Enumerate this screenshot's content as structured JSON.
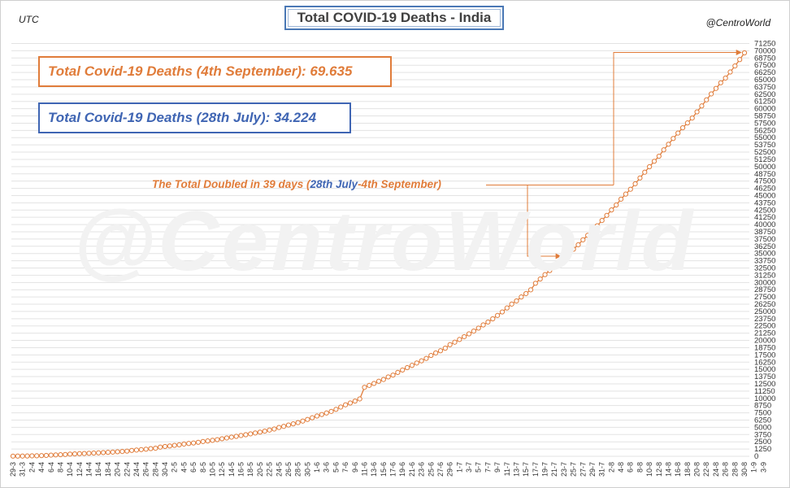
{
  "header": {
    "title": "Total COVID-19 Deaths - India",
    "left_note": "UTC",
    "right_note": "@CentroWorld"
  },
  "watermark": "@CentroWorld",
  "callouts": {
    "sept": "Total Covid-19 Deaths (4th September):  69.635",
    "july": "Total Covid-19 Deaths (28th July): 34.224",
    "doubled_part1": "The Total Doubled in 39 days (",
    "doubled_blue": "28th July",
    "doubled_part2": "-4th September)"
  },
  "colors": {
    "series": "#e07c3a",
    "july_accent": "#3f65b3",
    "title_border": "#4a78b5",
    "grid": "#e3e3e3"
  },
  "chart_data": {
    "type": "line",
    "title": "Total COVID-19 Deaths - India",
    "xlabel": "",
    "ylabel": "",
    "ylim": [
      0,
      71250
    ],
    "ytick_step": 1250,
    "grid": true,
    "legend": "none",
    "x_start": "29-3",
    "x_end": "4-9",
    "x_tick_labels": [
      "29-3",
      "31-3",
      "2-4",
      "4-4",
      "6-4",
      "8-4",
      "10-4",
      "12-4",
      "14-4",
      "16-4",
      "18-4",
      "20-4",
      "22-4",
      "24-4",
      "26-4",
      "28-4",
      "30-4",
      "2-5",
      "4-5",
      "6-5",
      "8-5",
      "10-5",
      "12-5",
      "14-5",
      "16-5",
      "18-5",
      "20-5",
      "22-5",
      "24-5",
      "26-5",
      "28-5",
      "30-5",
      "1-6",
      "3-6",
      "5-6",
      "7-6",
      "9-6",
      "11-6",
      "13-6",
      "15-6",
      "17-6",
      "19-6",
      "21-6",
      "23-6",
      "25-6",
      "27-6",
      "29-6",
      "1-7",
      "3-7",
      "5-7",
      "7-7",
      "9-7",
      "11-7",
      "13-7",
      "15-7",
      "17-7",
      "19-7",
      "21-7",
      "23-7",
      "25-7",
      "27-7",
      "29-7",
      "31-7",
      "2-8",
      "4-8",
      "6-8",
      "8-8",
      "10-8",
      "12-8",
      "14-8",
      "16-8",
      "18-8",
      "20-8",
      "22-8",
      "24-8",
      "26-8",
      "28-8",
      "30-8",
      "1-9",
      "3-9"
    ],
    "series": [
      {
        "values": [
          27,
          35,
          38,
          50,
          72,
          86,
          114,
          149,
          199,
          239,
          273,
          308,
          377,
          414,
          452,
          480,
          521,
          559,
          592,
          640,
          681,
          721,
          780,
          826,
          886,
          1007,
          1074,
          1152,
          1223,
          1323,
          1391,
          1583,
          1694,
          1783,
          1886,
          1981,
          2109,
          2206,
          2293,
          2415,
          2549,
          2649,
          2753,
          2872,
          3029,
          3163,
          3303,
          3435,
          3583,
          3720,
          3867,
          4021,
          4167,
          4337,
          4531,
          4706,
          4971,
          5164,
          5394,
          5598,
          5815,
          6075,
          6363,
          6649,
          6946,
          7207,
          7473,
          7745,
          8102,
          8498,
          8884,
          9195,
          9520,
          9900,
          11903,
          12237,
          12573,
          12948,
          13254,
          13699,
          14011,
          14476,
          14894,
          15301,
          15685,
          16095,
          16475,
          16893,
          17400,
          17834,
          18213,
          18655,
          19268,
          19693,
          20160,
          20642,
          21129,
          21604,
          22123,
          22674,
          23174,
          23727,
          24309,
          24914,
          25602,
          26273,
          26816,
          27497,
          28084,
          28732,
          29861,
          30601,
          31358,
          32063,
          32771,
          33408,
          34224,
          35003,
          35747,
          36511,
          37364,
          38135,
          38938,
          39795,
          40699,
          41585,
          42518,
          43379,
          44386,
          45257,
          46091,
          47033,
          48040,
          49036,
          49980,
          50921,
          51797,
          52889,
          53866,
          54849,
          55794,
          56706,
          57542,
          58390,
          59449,
          60472,
          61529,
          62550,
          63498,
          64469,
          65288,
          66333,
          67376,
          68472,
          69635
        ]
      }
    ]
  }
}
